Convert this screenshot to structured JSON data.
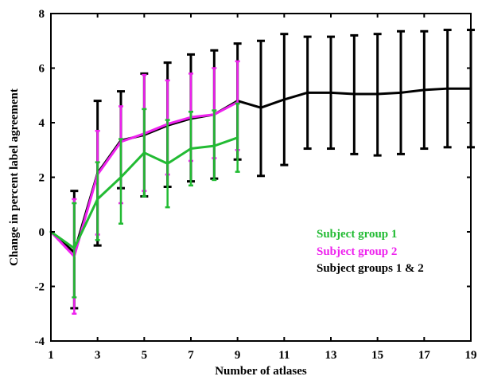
{
  "chart_data": {
    "type": "line",
    "xlabel": "Number of atlases",
    "ylabel": "Change in percent label agreement",
    "xlim": [
      1,
      19
    ],
    "ylim": [
      -4,
      8
    ],
    "x_ticks": [
      1,
      3,
      5,
      7,
      9,
      11,
      13,
      15,
      17,
      19
    ],
    "y_ticks": [
      -4,
      -2,
      0,
      2,
      4,
      6,
      8
    ],
    "legend_position": "right",
    "series": [
      {
        "name": "Subject group 1",
        "color": "#22bb33",
        "x": [
          1,
          2,
          3,
          4,
          5,
          6,
          7,
          8,
          9
        ],
        "y": [
          0,
          -0.6,
          1.2,
          2.0,
          2.9,
          2.5,
          3.05,
          3.15,
          3.45
        ],
        "err_low": [
          0,
          -2.4,
          -0.3,
          0.3,
          1.3,
          0.9,
          1.7,
          1.9,
          2.2
        ],
        "err_high": [
          0,
          1.05,
          2.55,
          3.4,
          4.5,
          4.1,
          4.4,
          4.45,
          4.7
        ]
      },
      {
        "name": "Subject group 2",
        "color": "#ee22ee",
        "x": [
          1,
          2,
          3,
          4,
          5,
          6,
          7,
          8,
          9
        ],
        "y": [
          0,
          -0.9,
          2.1,
          3.3,
          3.6,
          3.95,
          4.2,
          4.3,
          4.75
        ],
        "err_low": [
          0,
          -3.0,
          -0.1,
          1.05,
          1.5,
          2.1,
          2.6,
          2.7,
          3.0
        ],
        "err_high": [
          0,
          1.2,
          3.7,
          4.6,
          5.75,
          5.55,
          5.8,
          6.0,
          6.25
        ]
      },
      {
        "name": "Subject groups 1 & 2",
        "color": "#000000",
        "x": [
          1,
          2,
          3,
          4,
          5,
          6,
          7,
          8,
          9,
          10,
          11,
          12,
          13,
          14,
          15,
          16,
          17,
          18,
          19
        ],
        "y": [
          0,
          -0.75,
          2.15,
          3.35,
          3.55,
          3.9,
          4.15,
          4.3,
          4.8,
          4.55,
          4.85,
          5.1,
          5.1,
          5.05,
          5.05,
          5.1,
          5.2,
          5.25,
          5.25
        ],
        "err_low": [
          0,
          -2.8,
          -0.5,
          1.6,
          1.3,
          1.65,
          1.85,
          1.95,
          2.65,
          2.05,
          2.45,
          3.05,
          3.05,
          2.85,
          2.8,
          2.85,
          3.05,
          3.1,
          3.1
        ],
        "err_high": [
          0,
          1.5,
          4.8,
          5.15,
          5.8,
          6.2,
          6.5,
          6.65,
          6.9,
          7.0,
          7.25,
          7.15,
          7.15,
          7.2,
          7.25,
          7.35,
          7.35,
          7.4,
          7.4
        ]
      }
    ]
  }
}
